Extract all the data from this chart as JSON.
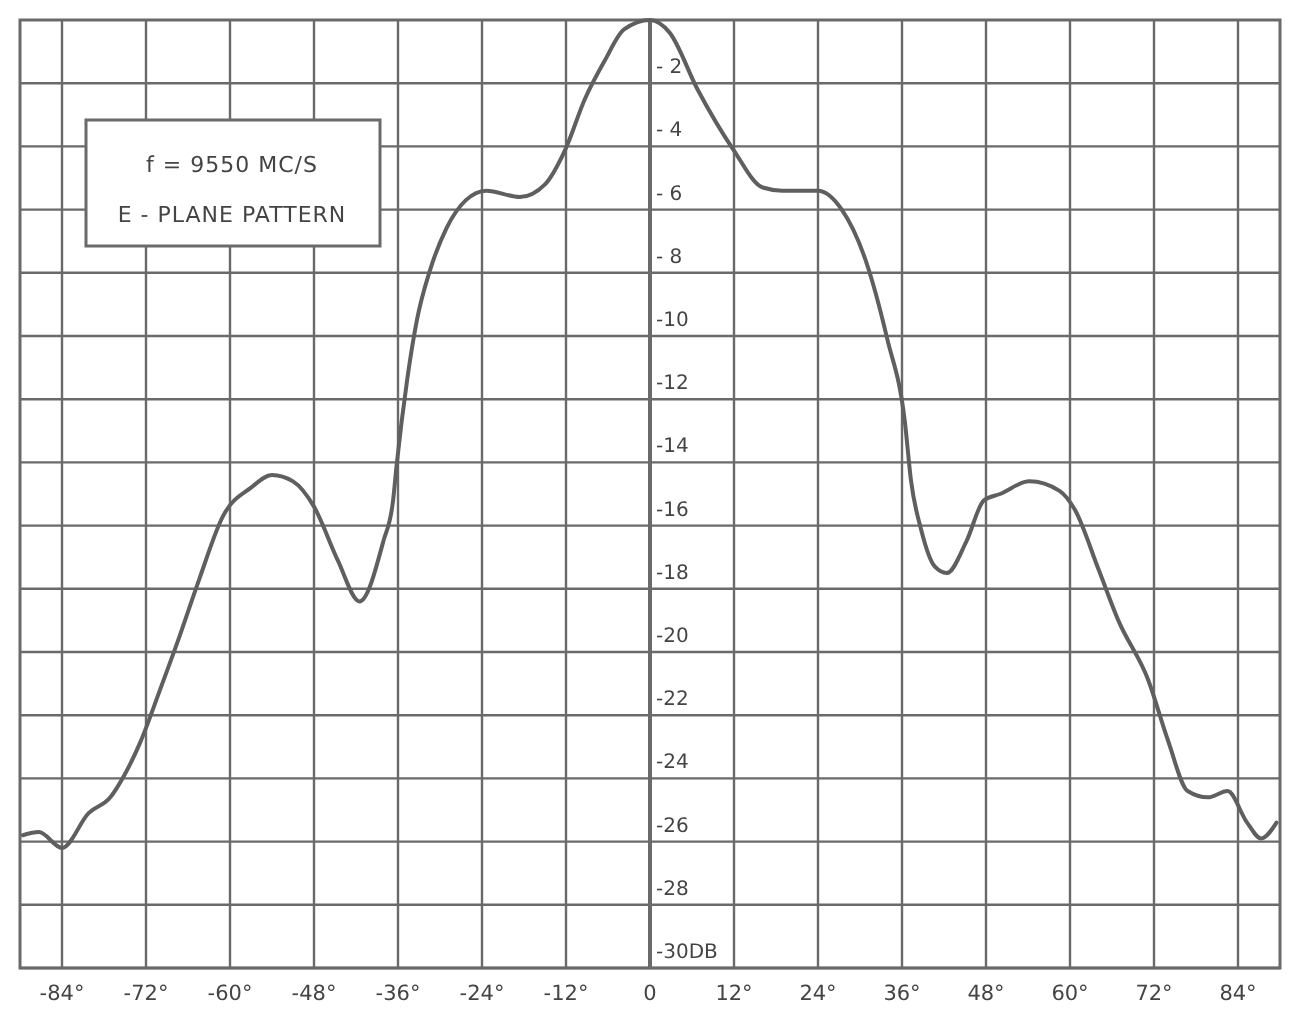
{
  "chart_data": {
    "type": "line",
    "x": [
      -89.6,
      -87.3,
      -84,
      -80.2,
      -77.1,
      -75.1,
      -72.9,
      -70,
      -67.2,
      -64.4,
      -61,
      -57,
      -54,
      -51,
      -48,
      -44.6,
      -41.5,
      -38.1,
      -36.7,
      -36.2,
      -34.7,
      -33.3,
      -31.4,
      -29.1,
      -26.3,
      -23.4,
      -18.6,
      -15,
      -12.1,
      -9.3,
      -6.5,
      -3.7,
      0,
      2.8,
      6.8,
      11.9,
      16.1,
      18.9,
      24,
      27.4,
      30.8,
      33.9,
      36.4,
      37.3,
      38.7,
      40.7,
      42.4,
      45.2,
      47.7,
      50,
      54.2,
      58.5,
      60.7,
      64.1,
      66.9,
      71.2,
      74,
      76.8,
      79.7,
      82.5,
      85.3,
      87.3,
      89.5
    ],
    "series": [
      {
        "color": "#5f5f5f",
        "values": [
          -25.8,
          -25.7,
          -26.2,
          -25.1,
          -24.6,
          -23.9,
          -22.9,
          -21.2,
          -19.5,
          -17.7,
          -15.7,
          -14.8,
          -14.4,
          -14.6,
          -15.4,
          -17.1,
          -18.4,
          -16.5,
          -15.2,
          -14.1,
          -11.4,
          -9.5,
          -7.9,
          -6.6,
          -5.7,
          -5.4,
          -5.6,
          -5.2,
          -4.1,
          -2.5,
          -1.3,
          -0.3,
          0,
          -0.4,
          -2.2,
          -4.1,
          -5.3,
          -5.4,
          -5.4,
          -6,
          -7.6,
          -10.1,
          -12.7,
          -14.6,
          -16.1,
          -17.3,
          -17.5,
          -16.5,
          -15.2,
          -15,
          -14.6,
          -14.9,
          -15.5,
          -17.4,
          -19,
          -20.9,
          -22.8,
          -24.4,
          -24.6,
          -24.4,
          -25.4,
          -25.9,
          -25.4
        ]
      }
    ],
    "xlim": [
      -90,
      90
    ],
    "xticks": [
      {
        "value": -84,
        "label": "-84°"
      },
      {
        "value": -72,
        "label": "-72°"
      },
      {
        "value": -60,
        "label": "-60°"
      },
      {
        "value": -48,
        "label": "-48°"
      },
      {
        "value": -36,
        "label": "-36°"
      },
      {
        "value": -24,
        "label": "-24°"
      },
      {
        "value": -12,
        "label": "-12°"
      },
      0,
      {
        "value": 12,
        "label": "12°"
      },
      {
        "value": 24,
        "label": "24°"
      },
      {
        "value": 36,
        "label": "36°"
      },
      {
        "value": 48,
        "label": "48°"
      },
      {
        "value": 60,
        "label": "60°"
      },
      {
        "value": 72,
        "label": "72°"
      },
      {
        "value": 84,
        "label": "84°"
      }
    ],
    "ylim": [
      -30,
      0
    ],
    "yticks": [
      {
        "value": -2,
        "label": "- 2"
      },
      {
        "value": -4,
        "label": "- 4"
      },
      {
        "value": -6,
        "label": "- 6"
      },
      {
        "value": -8,
        "label": "- 8"
      },
      -10,
      -12,
      -14,
      -16,
      -18,
      -20,
      -22,
      -24,
      -26,
      -28,
      {
        "value": -30,
        "label": "-30DB"
      }
    ],
    "grid": true,
    "marker": "none",
    "line_style": "solid",
    "annotations": [
      "f = 9550 MC/S",
      "E - PLANE PATTERN"
    ]
  }
}
